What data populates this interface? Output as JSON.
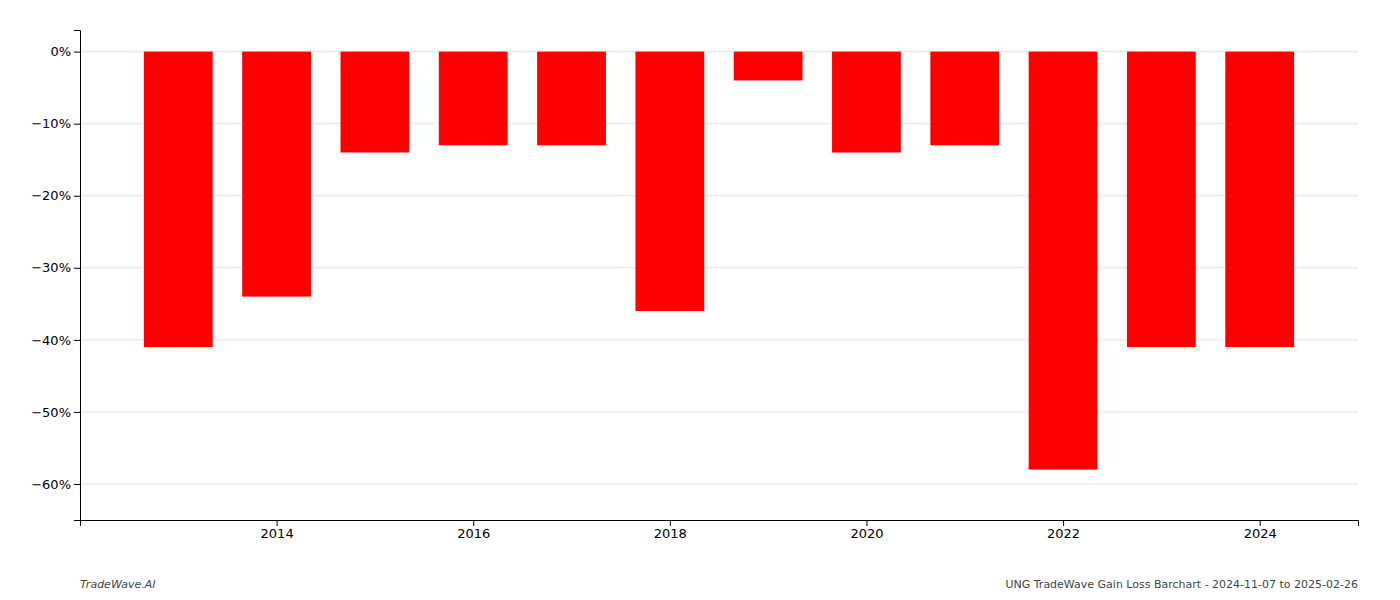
{
  "chart_data": {
    "type": "bar",
    "x": [
      2013,
      2014,
      2015,
      2016,
      2017,
      2018,
      2019,
      2020,
      2021,
      2022,
      2023,
      2024
    ],
    "values": [
      -41.0,
      -34.0,
      -14.0,
      -13.0,
      -13.0,
      -36.0,
      -4.0,
      -14.0,
      -13.0,
      -58.0,
      -41.0,
      -41.0
    ],
    "color": "#ff0000",
    "xlim": [
      2012,
      2025
    ],
    "xticks": [
      2014,
      2016,
      2018,
      2020,
      2022,
      2024
    ],
    "ylim": [
      -65,
      3
    ],
    "yticks": [
      {
        "value": 0,
        "label": "0%"
      },
      {
        "value": -10,
        "label": "−10%"
      },
      {
        "value": -20,
        "label": "−20%"
      },
      {
        "value": -30,
        "label": "−30%"
      },
      {
        "value": -40,
        "label": "−40%"
      },
      {
        "value": -50,
        "label": "−50%"
      },
      {
        "value": -60,
        "label": "−60%"
      }
    ],
    "grid": true,
    "annotations": [
      "TradeWave.AI",
      "UNG TradeWave Gain Loss Barchart - 2024-11-07 to 2025-02-26"
    ]
  }
}
